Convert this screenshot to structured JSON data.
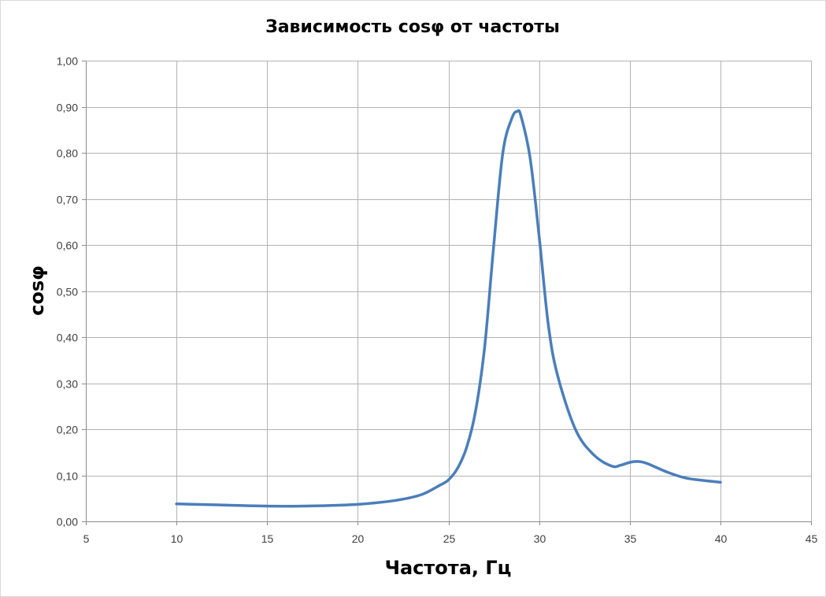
{
  "chart_data": {
    "type": "line",
    "title": "Зависимость cosφ от частоты",
    "xlabel": "Частота, Гц",
    "ylabel": "cosφ",
    "xlim": [
      5,
      45
    ],
    "ylim": [
      0,
      1
    ],
    "x_ticks": [
      "5",
      "10",
      "15",
      "20",
      "25",
      "30",
      "35",
      "40",
      "45"
    ],
    "y_ticks": [
      "0,00",
      "0,10",
      "0,20",
      "0,30",
      "0,40",
      "0,50",
      "0,60",
      "0,70",
      "0,80",
      "0,90",
      "1,00"
    ],
    "grid": true,
    "legend": "none",
    "series": [
      {
        "color": "#4a7ebb",
        "x": [
          10,
          12,
          14,
          16,
          18,
          20,
          22,
          23.5,
          24.5,
          25,
          25.5,
          26,
          26.5,
          27,
          27.5,
          28,
          28.5,
          28.8,
          29,
          29.5,
          30,
          30.5,
          31,
          32,
          33,
          34,
          34.5,
          35,
          35.5,
          36,
          37,
          38,
          39,
          40
        ],
        "y": [
          0.038,
          0.036,
          0.034,
          0.033,
          0.034,
          0.037,
          0.045,
          0.058,
          0.078,
          0.09,
          0.115,
          0.16,
          0.24,
          0.38,
          0.6,
          0.8,
          0.875,
          0.89,
          0.88,
          0.79,
          0.62,
          0.43,
          0.32,
          0.2,
          0.145,
          0.12,
          0.122,
          0.128,
          0.13,
          0.125,
          0.108,
          0.095,
          0.089,
          0.085
        ]
      }
    ]
  }
}
